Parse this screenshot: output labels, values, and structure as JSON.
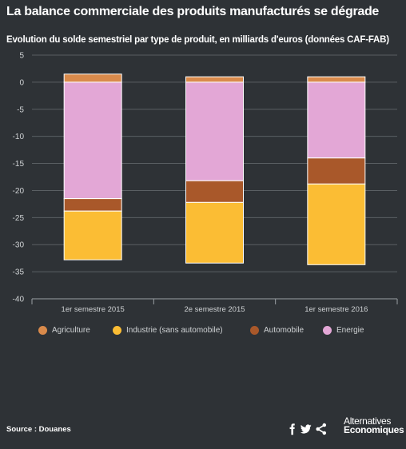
{
  "header": {
    "title": "La balance commerciale des produits manufacturés se dégrade",
    "subtitle": "Evolution du solde semestriel par type de produit, en milliards d'euros (données CAF-FAB)"
  },
  "footer": {
    "source": "Source : Douanes",
    "logo_line1": "Alternatives",
    "logo_line2": "Economiques"
  },
  "share_icons": [
    "facebook-icon",
    "twitter-icon",
    "share-icon"
  ],
  "chart_data": {
    "type": "bar",
    "stacked": true,
    "categories": [
      "1er semestre 2015",
      "2e semestre 2015",
      "1er semestre 2016"
    ],
    "series": [
      {
        "name": "Agriculture",
        "color": "#d98a4b",
        "values": [
          1.5,
          1.0,
          1.0
        ]
      },
      {
        "name": "Industrie (sans automobile)",
        "color": "#fbbd34",
        "values": [
          -9.0,
          -11.2,
          -14.9
        ]
      },
      {
        "name": "Automobile",
        "color": "#a9582a",
        "values": [
          -2.3,
          -4.0,
          -4.8
        ]
      },
      {
        "name": "Energie",
        "color": "#e3a7d6",
        "values": [
          -21.5,
          -18.2,
          -14.0
        ]
      }
    ],
    "stack_order_negative": [
      "Energie",
      "Automobile",
      "Industrie (sans automobile)"
    ],
    "ylim": [
      -40,
      5
    ],
    "yticks": [
      5,
      0,
      -5,
      -10,
      -15,
      -20,
      -25,
      -30,
      -35,
      -40
    ],
    "grid": true,
    "legend_position": "bottom"
  }
}
